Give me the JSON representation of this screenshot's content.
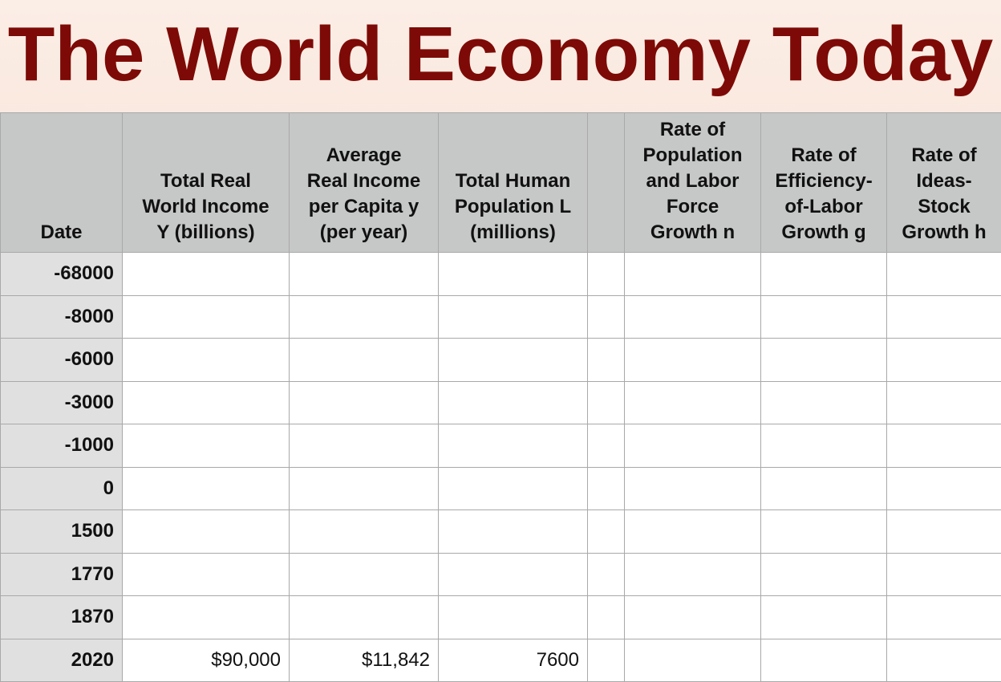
{
  "title": "The World Economy Today",
  "table": {
    "headers": [
      [
        "Date"
      ],
      [
        "Total Real",
        "World Income",
        "Y (billions)"
      ],
      [
        "Average",
        "Real Income",
        "per Capita y",
        "(per year)"
      ],
      [
        "Total Human",
        "Population L",
        "(millions)"
      ],
      [
        "Rate of",
        "Population",
        "and Labor",
        "Force",
        "Growth n"
      ],
      [
        "Rate of",
        "Efficiency-",
        "of-Labor",
        "Growth g"
      ],
      [
        "Rate of",
        "Ideas-",
        "Stock",
        "Growth h"
      ]
    ],
    "rows": [
      {
        "date": "-68000"
      },
      {
        "date": "-8000"
      },
      {
        "date": "-6000"
      },
      {
        "date": "-3000"
      },
      {
        "date": "-1000"
      },
      {
        "date": "0"
      },
      {
        "date": "1500"
      },
      {
        "date": "1770"
      },
      {
        "date": "1870"
      },
      {
        "date": "2020",
        "income": "$90,000",
        "per_capita": "$11,842",
        "population": "7600"
      }
    ]
  }
}
